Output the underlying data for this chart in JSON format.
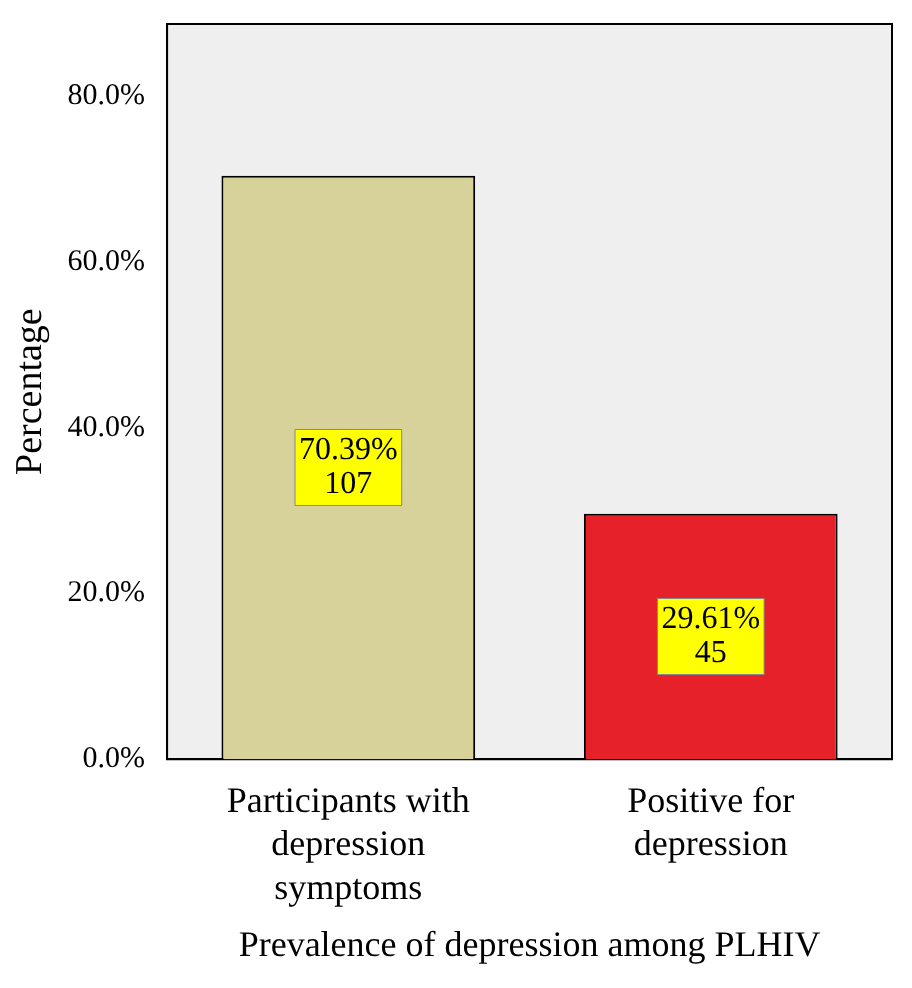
{
  "chart_data": {
    "type": "bar",
    "xlabel": "Prevalence of depression among PLHIV",
    "ylabel": "Percentage",
    "categories": [
      "Participants with depression symptoms",
      "Positive for depression"
    ],
    "values": [
      70.39,
      29.61
    ],
    "colors": [
      "#d6d29a",
      "#e62129"
    ],
    "value_labels": [
      "70.39%\n107",
      "29.61%\n45"
    ],
    "ylim": [
      0,
      88.7
    ],
    "yticks": [
      {
        "value": 0,
        "label": "0.0%"
      },
      {
        "value": 20,
        "label": "20.0%"
      },
      {
        "value": 40,
        "label": "40.0%"
      },
      {
        "value": 60,
        "label": "60.0%"
      },
      {
        "value": 80,
        "label": "80.0%"
      }
    ],
    "grid": false,
    "legend": false
  }
}
